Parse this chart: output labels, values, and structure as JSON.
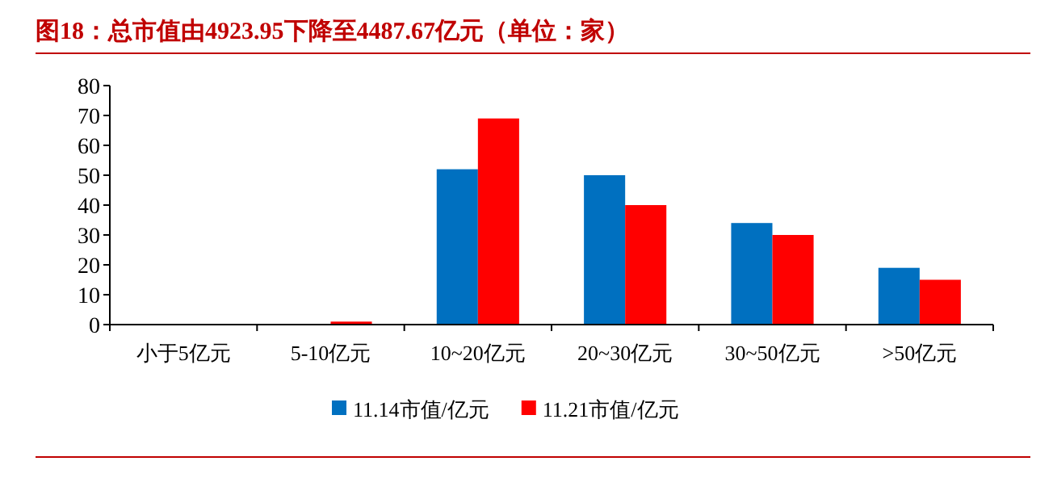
{
  "chart_data": {
    "type": "bar",
    "title": "图18：总市值由4923.95下降至4487.67亿元（单位：家）",
    "categories": [
      "小于5亿元",
      "5-10亿元",
      "10~20亿元",
      "20~30亿元",
      "30~50亿元",
      ">50亿元"
    ],
    "series": [
      {
        "name": "11.14市值/亿元",
        "color": "#0070c0",
        "values": [
          0,
          0,
          52,
          50,
          34,
          19
        ]
      },
      {
        "name": "11.21市值/亿元",
        "color": "#ff0000",
        "values": [
          0,
          1,
          69,
          40,
          30,
          15
        ]
      }
    ],
    "ylim": [
      0,
      80
    ],
    "yticks": [
      0,
      10,
      20,
      30,
      40,
      50,
      60,
      70,
      80
    ],
    "grid": false,
    "legend": "bottom"
  }
}
